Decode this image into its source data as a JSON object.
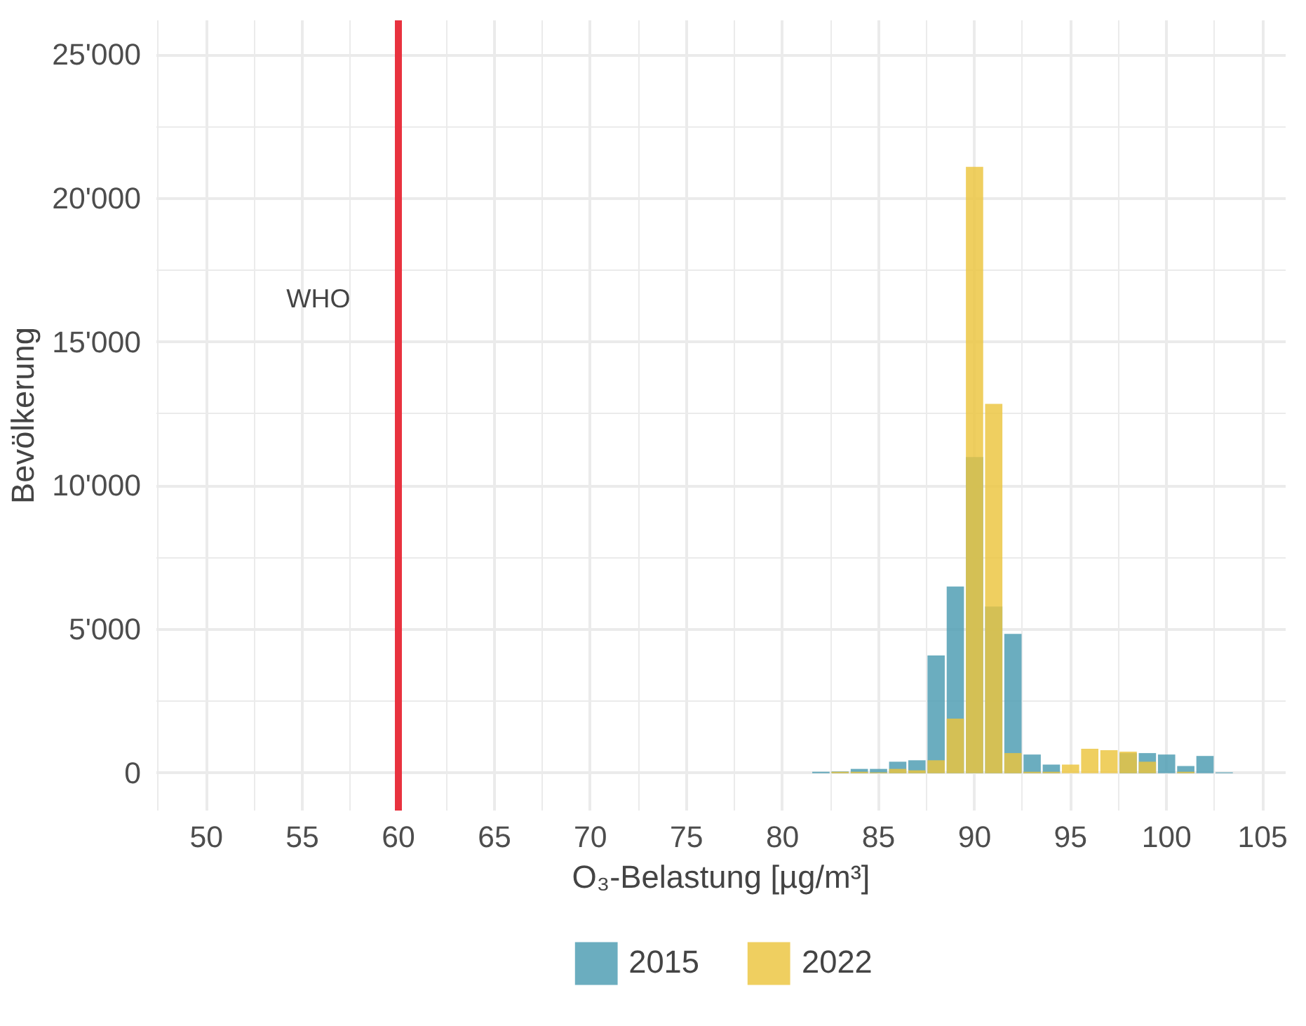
{
  "chart_data": {
    "type": "histogram",
    "xlabel": "O₃-Belastung [µg/m³]",
    "ylabel": "Bevölkerung",
    "bins": [
      81.5,
      82.5,
      83.5,
      84.5,
      85.5,
      86.5,
      87.5,
      88.5,
      89.5,
      90.5,
      91.5,
      92.5,
      93.5,
      94.5,
      95.5,
      96.5,
      97.5,
      98.5,
      99.5,
      100.5,
      101.5,
      102.5,
      103.5
    ],
    "series": [
      {
        "name": "2015",
        "color": "#4a9bb1",
        "values": [
          50,
          60,
          150,
          150,
          400,
          450,
          4100,
          6500,
          11000,
          5800,
          4850,
          650,
          300,
          null,
          null,
          null,
          700,
          700,
          650,
          250,
          600,
          30
        ]
      },
      {
        "name": "2022",
        "color": "#ecc53d",
        "values": [
          0,
          50,
          50,
          30,
          150,
          100,
          450,
          1900,
          21100,
          12850,
          700,
          50,
          50,
          300,
          850,
          800,
          750,
          400,
          0,
          50,
          0,
          0
        ]
      }
    ],
    "xlim": [
      47.4,
      106.2
    ],
    "ylim": [
      -1300,
      26200
    ],
    "xticks": [
      50,
      55,
      60,
      65,
      70,
      75,
      80,
      85,
      90,
      95,
      100,
      105
    ],
    "yticks": [
      {
        "value": 0,
        "label": "0"
      },
      {
        "value": 5000,
        "label": "5'000"
      },
      {
        "value": 10000,
        "label": "10'000"
      },
      {
        "value": 15000,
        "label": "15'000"
      },
      {
        "value": 20000,
        "label": "20'000"
      },
      {
        "value": 25000,
        "label": "25'000"
      }
    ],
    "ref_lines": [
      {
        "axis": "x",
        "value": 60,
        "label": "WHO",
        "color": "#e8323f"
      }
    ],
    "grid": true,
    "legend": "bottom"
  }
}
